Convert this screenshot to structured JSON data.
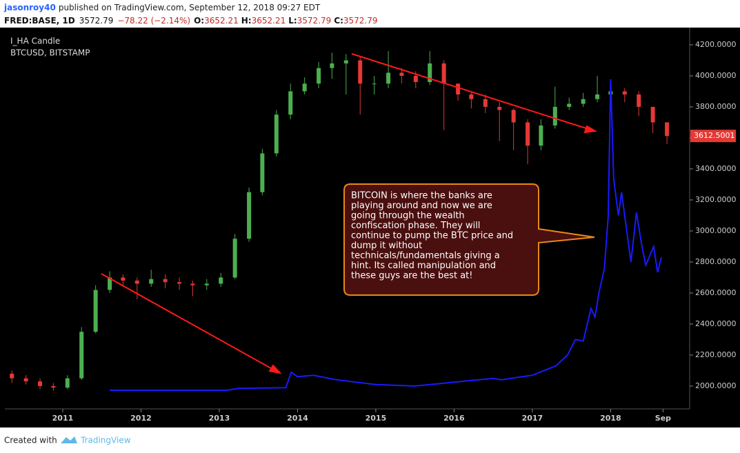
{
  "header": {
    "author": "jasonroy40",
    "published": "published on TradingView.com, September 12, 2018 09:27 EDT",
    "symbol": "FRED:BASE, 1D",
    "last": 3572.79,
    "change": "−78.22 (−2.14%)",
    "open_label": "O:",
    "open": 3652.21,
    "high_label": "H:",
    "high": 3652.21,
    "low_label": "L:",
    "low": 3572.79,
    "close_label": "C:",
    "close": 3572.79
  },
  "chart_data": {
    "type": "candlestick",
    "xlim": [
      2010.26,
      2019.01
    ],
    "xticks": [
      2011,
      2012,
      2013,
      2014,
      2015,
      2016,
      2017,
      2018,
      {
        "value": 2018.67,
        "label": "Sep"
      }
    ],
    "ylim": [
      1853,
      4280
    ],
    "yticks": [
      {
        "value": 2000,
        "label": "2000.0000"
      },
      {
        "value": 2200,
        "label": "2200.0000"
      },
      {
        "value": 2400,
        "label": "2400.0000"
      },
      {
        "value": 2600,
        "label": "2600.0000"
      },
      {
        "value": 2800,
        "label": "2800.0000"
      },
      {
        "value": 3000,
        "label": "3000.0000"
      },
      {
        "value": 3200,
        "label": "3200.0000"
      },
      {
        "value": 3400,
        "label": "3400.0000"
      },
      {
        "value": 3600,
        "label": "3600.0000"
      },
      {
        "value": 3800,
        "label": "3800.0000"
      },
      {
        "value": 4000,
        "label": "4000.0000"
      },
      {
        "value": 4200,
        "label": "4200.0000"
      }
    ],
    "last_price_label": 3612.5001,
    "last_price_color": "#e53935",
    "candles": {
      "name": "I_HA Candle",
      "up_color": "#4caf50",
      "down_color": "#e53935",
      "x": [
        2010.35,
        2010.53,
        2010.71,
        2010.88,
        2011.06,
        2011.24,
        2011.42,
        2011.6,
        2011.77,
        2011.95,
        2012.13,
        2012.31,
        2012.49,
        2012.66,
        2012.84,
        2013.02,
        2013.2,
        2013.38,
        2013.55,
        2013.73,
        2013.91,
        2014.09,
        2014.27,
        2014.44,
        2014.62,
        2014.8,
        2014.98,
        2015.16,
        2015.33,
        2015.51,
        2015.69,
        2015.87,
        2016.05,
        2016.22,
        2016.4,
        2016.58,
        2016.76,
        2016.94,
        2017.11,
        2017.29,
        2017.47,
        2017.65,
        2017.83,
        2018.0,
        2018.18,
        2018.36,
        2018.54,
        2018.72
      ],
      "open": [
        2080,
        2050,
        2030,
        2000,
        1990,
        2050,
        2350,
        2620,
        2700,
        2680,
        2660,
        2690,
        2670,
        2660,
        2650,
        2660,
        2700,
        2950,
        3250,
        3500,
        3750,
        3900,
        3950,
        4050,
        4080,
        4100,
        3950,
        3950,
        4020,
        4000,
        3960,
        4080,
        3950,
        3880,
        3850,
        3800,
        3780,
        3700,
        3550,
        3680,
        3800,
        3820,
        3850,
        3880,
        3900,
        3880,
        3800,
        3700
      ],
      "high": [
        2100,
        2070,
        2050,
        2020,
        2070,
        2380,
        2650,
        2740,
        2720,
        2700,
        2750,
        2720,
        2700,
        2680,
        2690,
        2730,
        2980,
        3280,
        3530,
        3780,
        3950,
        3990,
        4090,
        4150,
        4140,
        4120,
        4000,
        4160,
        4050,
        4030,
        4160,
        4100,
        3950,
        3900,
        3880,
        3830,
        3790,
        3720,
        3720,
        3930,
        3860,
        3890,
        4000,
        3940,
        3920,
        3900,
        3800,
        3700
      ],
      "low": [
        2020,
        2010,
        1980,
        1970,
        1980,
        2040,
        2340,
        2600,
        2640,
        2560,
        2640,
        2630,
        2620,
        2580,
        2620,
        2640,
        2690,
        2930,
        3230,
        3480,
        3720,
        3880,
        3920,
        3980,
        3880,
        3750,
        3880,
        3920,
        3950,
        3920,
        3940,
        3650,
        3840,
        3790,
        3760,
        3580,
        3520,
        3430,
        3520,
        3660,
        3780,
        3800,
        3830,
        3860,
        3830,
        3740,
        3630,
        3560
      ],
      "close": [
        2050,
        2030,
        2000,
        1990,
        2050,
        2350,
        2620,
        2700,
        2680,
        2660,
        2690,
        2670,
        2660,
        2650,
        2660,
        2700,
        2950,
        3250,
        3500,
        3750,
        3900,
        3950,
        4050,
        4080,
        4100,
        3950,
        3950,
        4020,
        4000,
        3960,
        4080,
        3950,
        3880,
        3850,
        3800,
        3780,
        3700,
        3550,
        3680,
        3800,
        3820,
        3850,
        3880,
        3900,
        3880,
        3800,
        3700,
        3612
      ]
    },
    "series": [
      {
        "name": "BTCUSD, BITSTAMP",
        "color": "#1a1aff",
        "x": [
          2011.6,
          2013.1,
          2013.25,
          2013.85,
          2013.92,
          2014.0,
          2014.2,
          2014.5,
          2015.0,
          2015.5,
          2016.0,
          2016.5,
          2016.6,
          2017.0,
          2017.1,
          2017.3,
          2017.45,
          2017.55,
          2017.65,
          2017.75,
          2017.8,
          2017.85,
          2017.92,
          2017.97,
          2018.0,
          2018.04,
          2018.1,
          2018.14,
          2018.2,
          2018.26,
          2018.33,
          2018.4,
          2018.45,
          2018.55,
          2018.6,
          2018.65
        ],
        "values": [
          1973,
          1973,
          1985,
          1990,
          2089,
          2060,
          2070,
          2040,
          2010,
          2000,
          2025,
          2050,
          2040,
          2070,
          2090,
          2130,
          2200,
          2300,
          2290,
          2500,
          2444,
          2600,
          2756,
          3100,
          3978,
          3333,
          3100,
          3250,
          3022,
          2800,
          3120,
          2900,
          2780,
          2900,
          2733,
          2830
        ]
      }
    ],
    "annotation": [
      "BITCOIN is where the banks are",
      "playing around and now we are",
      "going through the wealth",
      "confiscation phase. They will",
      "continue to pump the BTC price and",
      "dump it without",
      "technicals/fundamentals giving a",
      "hint. Its called manipulation and",
      "these guys are the best at!"
    ]
  },
  "footer": {
    "created": "Created with",
    "brand": "TradingView"
  }
}
